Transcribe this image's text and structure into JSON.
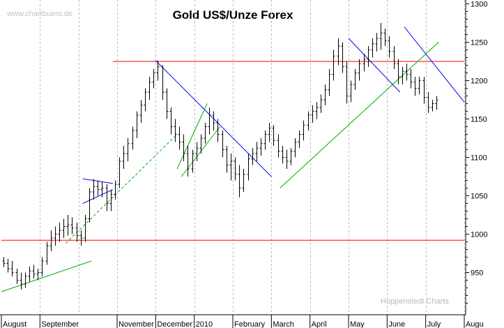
{
  "chart_data": {
    "type": "ohlc",
    "title": "Gold US$/Unze Forex",
    "watermark_top": "www.chartbuero.de",
    "watermark_bottom": "Hoppenstedt Charts",
    "ylim": [
      895,
      1305
    ],
    "y_ticks": [
      950,
      1000,
      1050,
      1100,
      1150,
      1200,
      1250,
      1300
    ],
    "x_labels": [
      "August",
      "September",
      "November",
      "December",
      "2010",
      "February",
      "March",
      "April",
      "May",
      "June",
      "July",
      "Augu"
    ],
    "x_domain": [
      0,
      108
    ],
    "x_label_positions": [
      0,
      9,
      27,
      36,
      45,
      54,
      63,
      72,
      81,
      90,
      99,
      108
    ],
    "x_grid_positions": [
      9,
      18,
      27,
      36,
      45,
      54,
      63,
      72,
      81,
      90,
      99,
      108
    ],
    "grid": true,
    "series": [
      {
        "ohlc": [
          [
            965,
            970,
            957,
            962
          ],
          [
            962,
            968,
            950,
            955
          ],
          [
            955,
            965,
            945,
            950
          ],
          [
            950,
            955,
            935,
            940
          ],
          [
            940,
            950,
            928,
            935
          ],
          [
            935,
            950,
            930,
            945
          ],
          [
            945,
            958,
            938,
            952
          ],
          [
            952,
            960,
            942,
            948
          ],
          [
            948,
            955,
            940,
            950
          ],
          [
            950,
            970,
            945,
            965
          ],
          [
            965,
            990,
            960,
            985
          ],
          [
            985,
            1005,
            978,
            995
          ],
          [
            995,
            1010,
            985,
            1000
          ],
          [
            1000,
            1015,
            990,
            1005
          ],
          [
            1005,
            1020,
            995,
            1010
          ],
          [
            1010,
            1025,
            998,
            1012
          ],
          [
            1012,
            1022,
            1000,
            1008
          ],
          [
            1008,
            1015,
            990,
            998
          ],
          [
            998,
            1005,
            985,
            995
          ],
          [
            995,
            1025,
            990,
            1020
          ],
          [
            1020,
            1060,
            1015,
            1055
          ],
          [
            1055,
            1072,
            1045,
            1062
          ],
          [
            1062,
            1070,
            1050,
            1058
          ],
          [
            1058,
            1068,
            1048,
            1060
          ],
          [
            1060,
            1065,
            1030,
            1040
          ],
          [
            1040,
            1058,
            1030,
            1052
          ],
          [
            1052,
            1070,
            1045,
            1065
          ],
          [
            1065,
            1100,
            1060,
            1095
          ],
          [
            1095,
            1115,
            1085,
            1105
          ],
          [
            1105,
            1125,
            1095,
            1118
          ],
          [
            1118,
            1140,
            1110,
            1135
          ],
          [
            1135,
            1160,
            1125,
            1155
          ],
          [
            1155,
            1175,
            1145,
            1168
          ],
          [
            1168,
            1190,
            1160,
            1185
          ],
          [
            1185,
            1205,
            1175,
            1198
          ],
          [
            1198,
            1215,
            1190,
            1210
          ],
          [
            1210,
            1226,
            1200,
            1218
          ],
          [
            1218,
            1220,
            1175,
            1185
          ],
          [
            1185,
            1190,
            1150,
            1160
          ],
          [
            1160,
            1165,
            1130,
            1140
          ],
          [
            1140,
            1150,
            1120,
            1130
          ],
          [
            1130,
            1140,
            1110,
            1120
          ],
          [
            1120,
            1130,
            1095,
            1105
          ],
          [
            1105,
            1115,
            1075,
            1085
          ],
          [
            1085,
            1110,
            1080,
            1105
          ],
          [
            1105,
            1120,
            1095,
            1112
          ],
          [
            1112,
            1130,
            1105,
            1125
          ],
          [
            1125,
            1145,
            1118,
            1140
          ],
          [
            1140,
            1165,
            1130,
            1155
          ],
          [
            1155,
            1160,
            1135,
            1145
          ],
          [
            1145,
            1150,
            1120,
            1130
          ],
          [
            1130,
            1135,
            1100,
            1110
          ],
          [
            1110,
            1115,
            1080,
            1090
          ],
          [
            1090,
            1105,
            1070,
            1095
          ],
          [
            1095,
            1100,
            1070,
            1078
          ],
          [
            1078,
            1090,
            1048,
            1060
          ],
          [
            1060,
            1085,
            1055,
            1078
          ],
          [
            1078,
            1105,
            1070,
            1098
          ],
          [
            1098,
            1112,
            1090,
            1105
          ],
          [
            1105,
            1120,
            1095,
            1112
          ],
          [
            1112,
            1125,
            1102,
            1118
          ],
          [
            1118,
            1135,
            1110,
            1130
          ],
          [
            1130,
            1145,
            1120,
            1138
          ],
          [
            1138,
            1142,
            1115,
            1122
          ],
          [
            1122,
            1130,
            1100,
            1108
          ],
          [
            1108,
            1115,
            1092,
            1100
          ],
          [
            1100,
            1110,
            1085,
            1095
          ],
          [
            1095,
            1112,
            1090,
            1108
          ],
          [
            1108,
            1125,
            1100,
            1120
          ],
          [
            1120,
            1135,
            1112,
            1130
          ],
          [
            1130,
            1148,
            1122,
            1142
          ],
          [
            1142,
            1160,
            1135,
            1155
          ],
          [
            1155,
            1168,
            1145,
            1160
          ],
          [
            1160,
            1172,
            1150,
            1165
          ],
          [
            1165,
            1182,
            1158,
            1175
          ],
          [
            1175,
            1195,
            1168,
            1188
          ],
          [
            1188,
            1215,
            1180,
            1208
          ],
          [
            1208,
            1240,
            1200,
            1232
          ],
          [
            1232,
            1255,
            1220,
            1245
          ],
          [
            1245,
            1250,
            1210,
            1218
          ],
          [
            1218,
            1225,
            1170,
            1180
          ],
          [
            1180,
            1200,
            1172,
            1195
          ],
          [
            1195,
            1215,
            1188,
            1210
          ],
          [
            1210,
            1228,
            1200,
            1222
          ],
          [
            1222,
            1235,
            1212,
            1228
          ],
          [
            1228,
            1245,
            1218,
            1240
          ],
          [
            1240,
            1255,
            1230,
            1248
          ],
          [
            1248,
            1262,
            1238,
            1255
          ],
          [
            1255,
            1275,
            1240,
            1262
          ],
          [
            1262,
            1268,
            1245,
            1252
          ],
          [
            1252,
            1258,
            1230,
            1238
          ],
          [
            1238,
            1245,
            1215,
            1222
          ],
          [
            1222,
            1228,
            1195,
            1205
          ],
          [
            1205,
            1218,
            1195,
            1212
          ],
          [
            1212,
            1222,
            1200,
            1208
          ],
          [
            1208,
            1215,
            1190,
            1198
          ],
          [
            1198,
            1205,
            1180,
            1190
          ],
          [
            1190,
            1205,
            1182,
            1200
          ],
          [
            1200,
            1205,
            1170,
            1178
          ],
          [
            1178,
            1185,
            1158,
            1165
          ],
          [
            1165,
            1175,
            1160,
            1170
          ],
          [
            1170,
            1180,
            1162,
            1175
          ]
        ]
      }
    ],
    "trendlines": [
      {
        "color": "#ff0000",
        "points": [
          [
            26,
            1225
          ],
          [
            108,
            1225
          ]
        ]
      },
      {
        "color": "#ff0000",
        "points": [
          [
            0,
            992
          ],
          [
            108,
            992
          ]
        ]
      },
      {
        "color": "#0000ff",
        "points": [
          [
            36,
            1226
          ],
          [
            63,
            1075
          ]
        ]
      },
      {
        "color": "#0000ff",
        "points": [
          [
            81,
            1255
          ],
          [
            93,
            1185
          ]
        ]
      },
      {
        "color": "#0000ff",
        "points": [
          [
            94,
            1270
          ],
          [
            108,
            1172
          ]
        ]
      },
      {
        "color": "#00aa00",
        "points": [
          [
            0,
            925
          ],
          [
            21,
            965
          ]
        ]
      },
      {
        "color": "#00aa00",
        "points": [
          [
            65,
            1060
          ],
          [
            102,
            1250
          ]
        ]
      },
      {
        "color": "#00aa00",
        "points": [
          [
            42,
            1075
          ],
          [
            51,
            1140
          ]
        ]
      },
      {
        "color": "#00aa00",
        "points": [
          [
            41,
            1085
          ],
          [
            48,
            1170
          ]
        ]
      },
      {
        "color": "#00aa00",
        "dashed": true,
        "points": [
          [
            15,
            988
          ],
          [
            41,
            1130
          ]
        ]
      },
      {
        "color": "#0000ff",
        "points": [
          [
            19,
            1072
          ],
          [
            26,
            1066
          ]
        ]
      },
      {
        "color": "#0000ff",
        "points": [
          [
            19,
            1040
          ],
          [
            26,
            1058
          ]
        ]
      }
    ]
  }
}
